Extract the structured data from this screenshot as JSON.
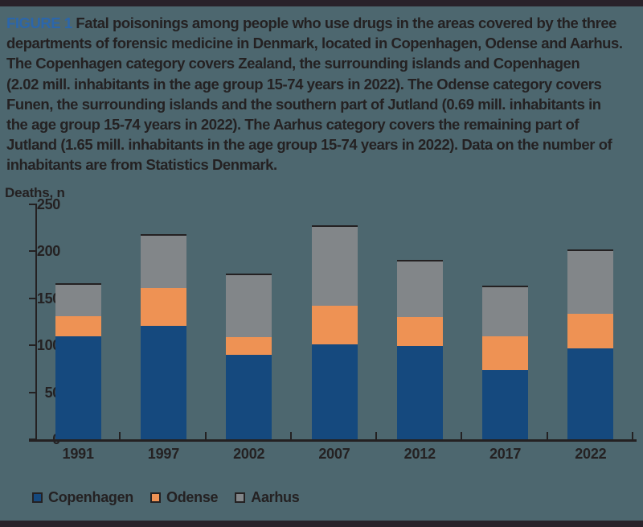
{
  "figure": {
    "label": "FIGURE 1",
    "caption_lines": [
      " Fatal poisonings among people who use drugs in the areas covered by the three",
      "departments of forensic medicine in Denmark, located in Copenhagen, Odense and Aarhus.",
      "The Copenhagen category covers Zealand, the surrounding islands and Copenhagen",
      "(2.02 mill. inhabitants in the age group 15-74 years in 2022). The Odense category covers",
      "Funen, the surrounding islands and the southern part of Jutland (0.69 mill. inhabitants in",
      "the age group 15-74 years in 2022). The Aarhus category covers the remaining part of",
      "Jutland (1.65 mill. inhabitants in the age group 15-74 years in 2022). Data on the number of",
      "inhabitants are from Statistics Denmark."
    ]
  },
  "chart_data": {
    "type": "bar",
    "stacked": true,
    "title": "",
    "xlabel": "",
    "ylabel": "Deaths, n",
    "categories": [
      "1991",
      "1997",
      "2002",
      "2007",
      "2012",
      "2017",
      "2022"
    ],
    "series": [
      {
        "name": "Copenhagen",
        "color": "#15497e",
        "values": [
          110,
          121,
          90,
          101,
          99,
          74,
          97
        ]
      },
      {
        "name": "Odense",
        "color": "#ee9254",
        "values": [
          21,
          40,
          19,
          41,
          31,
          36,
          37
        ]
      },
      {
        "name": "Aarhus",
        "color": "#828689",
        "values": [
          33,
          56,
          66,
          84,
          59,
          52,
          66
        ]
      }
    ],
    "ylim": [
      0,
      250
    ],
    "yticks": [
      0,
      50,
      100,
      150,
      200,
      250
    ],
    "grid": false,
    "legend_position": "bottom-left"
  },
  "colors": {
    "background": "#4d676f",
    "frame": "#29222a",
    "text": "#242122",
    "figure_label_blue": "#2b66ab",
    "axis": "#242122"
  }
}
